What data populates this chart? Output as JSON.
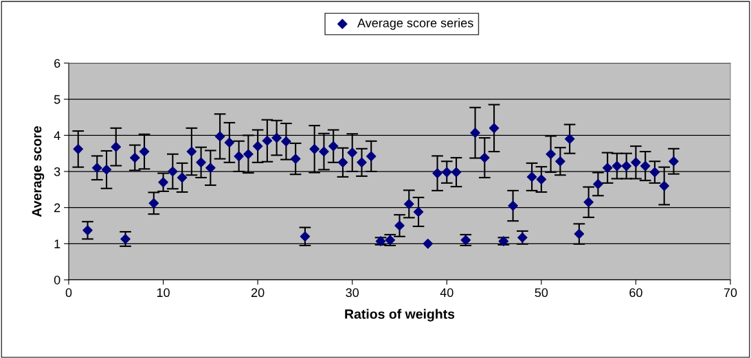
{
  "chart_data": {
    "type": "scatter",
    "xlabel": "Ratios of weights",
    "ylabel": "Average score",
    "xlim": [
      0,
      70
    ],
    "xticks": [
      0,
      10,
      20,
      30,
      40,
      50,
      60,
      70
    ],
    "ylim": [
      0,
      6
    ],
    "yticks": [
      0,
      1,
      2,
      3,
      4,
      5,
      6
    ],
    "grid": "y",
    "legend": "top",
    "marker": "diamond",
    "series": [
      {
        "name": "Average score series",
        "color": "#000080",
        "x": [
          1,
          2,
          3,
          4,
          5,
          6,
          7,
          8,
          9,
          10,
          11,
          12,
          13,
          14,
          15,
          16,
          17,
          18,
          19,
          20,
          21,
          22,
          23,
          24,
          25,
          26,
          27,
          28,
          29,
          30,
          31,
          32,
          33,
          34,
          35,
          36,
          37,
          38,
          39,
          40,
          41,
          42,
          43,
          44,
          45,
          46,
          47,
          48,
          49,
          50,
          51,
          52,
          53,
          54,
          55,
          56,
          57,
          58,
          59,
          60,
          61,
          62,
          63,
          64
        ],
        "values": [
          3.62,
          1.37,
          3.1,
          3.05,
          3.68,
          1.13,
          3.38,
          3.55,
          2.12,
          2.7,
          3.0,
          2.83,
          3.55,
          3.25,
          3.1,
          3.97,
          3.8,
          3.42,
          3.48,
          3.7,
          3.85,
          3.93,
          3.83,
          3.35,
          1.2,
          3.62,
          3.55,
          3.7,
          3.25,
          3.52,
          3.25,
          3.42,
          1.07,
          1.1,
          1.5,
          2.1,
          1.88,
          1.0,
          2.95,
          2.98,
          2.98,
          1.1,
          4.07,
          3.38,
          4.2,
          1.07,
          2.05,
          1.17,
          2.85,
          2.78,
          3.48,
          3.28,
          3.9,
          1.27,
          2.15,
          2.65,
          3.1,
          3.15,
          3.15,
          3.25,
          3.15,
          2.98,
          2.6,
          3.28
        ],
        "errors": [
          0.5,
          0.24,
          0.33,
          0.52,
          0.52,
          0.2,
          0.35,
          0.48,
          0.3,
          0.25,
          0.48,
          0.4,
          0.65,
          0.42,
          0.48,
          0.62,
          0.55,
          0.42,
          0.52,
          0.45,
          0.58,
          0.48,
          0.5,
          0.43,
          0.25,
          0.65,
          0.5,
          0.45,
          0.4,
          0.52,
          0.38,
          0.42,
          0.1,
          0.15,
          0.3,
          0.38,
          0.4,
          null,
          0.48,
          0.3,
          0.4,
          0.15,
          0.7,
          0.55,
          0.65,
          0.1,
          0.42,
          0.18,
          0.38,
          0.35,
          0.5,
          0.38,
          0.4,
          0.28,
          0.42,
          0.32,
          0.42,
          0.35,
          0.35,
          0.45,
          0.4,
          0.3,
          0.52,
          0.35
        ]
      }
    ]
  }
}
